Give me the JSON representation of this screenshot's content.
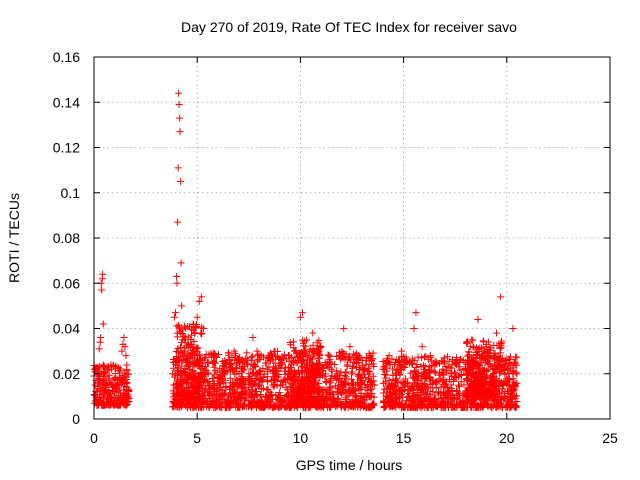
{
  "chart_data": {
    "type": "scatter",
    "title": "Day 270 of 2019, Rate Of TEC Index for receiver savo",
    "xlabel": "GPS time / hours",
    "ylabel": "ROTI / TECUs",
    "xlim": [
      0,
      25
    ],
    "ylim": [
      0,
      0.16
    ],
    "x_ticks": [
      0,
      5,
      10,
      15,
      20,
      25
    ],
    "x_tick_labels": [
      "0",
      "5",
      "10",
      "15",
      "20",
      "25"
    ],
    "y_ticks": [
      0,
      0.02,
      0.04,
      0.06,
      0.08,
      0.1,
      0.12,
      0.14,
      0.16
    ],
    "y_tick_labels": [
      "0",
      "0.02",
      "0.04",
      "0.06",
      "0.08",
      "0.1",
      "0.12",
      "0.14",
      "0.16"
    ],
    "grid": true,
    "marker": "plus",
    "color": "#ff0000",
    "series": [
      {
        "points": [
          [
            0.0,
            0.019
          ],
          [
            0.05,
            0.015
          ],
          [
            0.1,
            0.012
          ],
          [
            0.15,
            0.02
          ],
          [
            0.2,
            0.017
          ],
          [
            0.25,
            0.031
          ],
          [
            0.3,
            0.034
          ],
          [
            0.32,
            0.036
          ],
          [
            0.35,
            0.06
          ],
          [
            0.37,
            0.057
          ],
          [
            0.4,
            0.062
          ],
          [
            0.42,
            0.064
          ],
          [
            0.45,
            0.042
          ],
          [
            0.5,
            0.02
          ],
          [
            0.55,
            0.014
          ],
          [
            0.6,
            0.013
          ],
          [
            0.65,
            0.022
          ],
          [
            0.7,
            0.023
          ],
          [
            0.75,
            0.016
          ],
          [
            0.8,
            0.011
          ],
          [
            0.9,
            0.014
          ],
          [
            1.0,
            0.012
          ],
          [
            1.1,
            0.013
          ],
          [
            1.2,
            0.015
          ],
          [
            1.3,
            0.017
          ],
          [
            1.35,
            0.03
          ],
          [
            1.4,
            0.033
          ],
          [
            1.45,
            0.036
          ],
          [
            1.5,
            0.032
          ],
          [
            1.55,
            0.028
          ],
          [
            1.6,
            0.014
          ],
          [
            1.65,
            0.011
          ],
          [
            1.7,
            0.009
          ],
          [
            3.8,
            0.02
          ],
          [
            3.85,
            0.025
          ],
          [
            3.9,
            0.045
          ],
          [
            3.95,
            0.047
          ],
          [
            4.0,
            0.063
          ],
          [
            4.02,
            0.06
          ],
          [
            4.05,
            0.087
          ],
          [
            4.08,
            0.111
          ],
          [
            4.1,
            0.144
          ],
          [
            4.12,
            0.139
          ],
          [
            4.15,
            0.133
          ],
          [
            4.17,
            0.127
          ],
          [
            4.2,
            0.105
          ],
          [
            4.22,
            0.069
          ],
          [
            4.25,
            0.05
          ],
          [
            4.3,
            0.035
          ],
          [
            4.4,
            0.03
          ],
          [
            4.5,
            0.025
          ],
          [
            4.6,
            0.02
          ],
          [
            4.8,
            0.018
          ],
          [
            5.0,
            0.045
          ],
          [
            5.1,
            0.052
          ],
          [
            5.2,
            0.054
          ],
          [
            5.3,
            0.04
          ],
          [
            5.5,
            0.025
          ],
          [
            5.8,
            0.018
          ],
          [
            6.0,
            0.015
          ],
          [
            6.3,
            0.02
          ],
          [
            6.6,
            0.018
          ],
          [
            6.9,
            0.016
          ],
          [
            7.2,
            0.022
          ],
          [
            7.5,
            0.02
          ],
          [
            7.7,
            0.036
          ],
          [
            7.9,
            0.03
          ],
          [
            8.1,
            0.028
          ],
          [
            8.4,
            0.022
          ],
          [
            8.8,
            0.02
          ],
          [
            9.1,
            0.024
          ],
          [
            9.4,
            0.02
          ],
          [
            9.7,
            0.03
          ],
          [
            10.0,
            0.045
          ],
          [
            10.1,
            0.047
          ],
          [
            10.3,
            0.035
          ],
          [
            10.6,
            0.038
          ],
          [
            10.9,
            0.03
          ],
          [
            11.2,
            0.025
          ],
          [
            11.5,
            0.022
          ],
          [
            11.8,
            0.02
          ],
          [
            12.1,
            0.04
          ],
          [
            12.4,
            0.032
          ],
          [
            12.7,
            0.028
          ],
          [
            13.0,
            0.022
          ],
          [
            13.3,
            0.018
          ],
          [
            13.6,
            0.015
          ],
          [
            14.0,
            0.022
          ],
          [
            14.3,
            0.028
          ],
          [
            14.6,
            0.025
          ],
          [
            14.9,
            0.03
          ],
          [
            15.2,
            0.025
          ],
          [
            15.5,
            0.04
          ],
          [
            15.6,
            0.047
          ],
          [
            15.9,
            0.032
          ],
          [
            16.3,
            0.028
          ],
          [
            16.6,
            0.025
          ],
          [
            16.9,
            0.022
          ],
          [
            17.3,
            0.02
          ],
          [
            17.7,
            0.025
          ],
          [
            18.0,
            0.022
          ],
          [
            18.3,
            0.035
          ],
          [
            18.6,
            0.044
          ],
          [
            18.9,
            0.03
          ],
          [
            19.2,
            0.028
          ],
          [
            19.5,
            0.038
          ],
          [
            19.7,
            0.054
          ],
          [
            19.9,
            0.02
          ],
          [
            20.1,
            0.015
          ],
          [
            20.3,
            0.04
          ],
          [
            20.4,
            0.01
          ]
        ]
      }
    ],
    "bands": [
      {
        "x": [
          0.0,
          1.7
        ],
        "y": [
          0.006,
          0.024
        ]
      },
      {
        "x": [
          3.8,
          13.6
        ],
        "y": [
          0.005,
          0.03
        ]
      },
      {
        "x": [
          4.0,
          5.3
        ],
        "y": [
          0.008,
          0.042
        ]
      },
      {
        "x": [
          9.5,
          11.0
        ],
        "y": [
          0.008,
          0.035
        ]
      },
      {
        "x": [
          14.0,
          20.5
        ],
        "y": [
          0.005,
          0.028
        ]
      },
      {
        "x": [
          18.0,
          19.8
        ],
        "y": [
          0.01,
          0.035
        ]
      }
    ]
  }
}
